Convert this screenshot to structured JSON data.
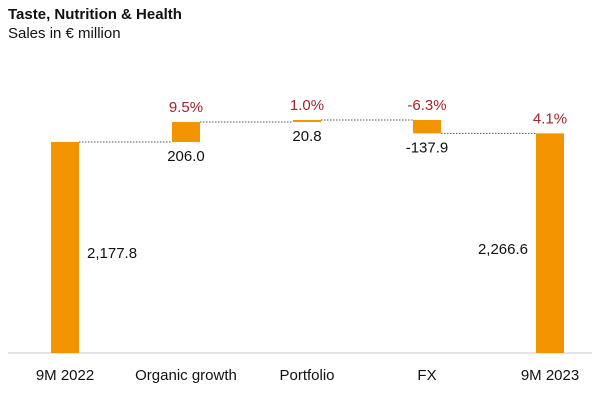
{
  "chart_data": {
    "type": "bar",
    "subtype": "waterfall",
    "title": "Taste, Nutrition & Health",
    "subtitle": "Sales in € million",
    "categories": [
      "9M 2022",
      "Organic growth",
      "Portfolio",
      "FX",
      "9M 2023"
    ],
    "values": [
      2177.8,
      206.0,
      20.8,
      -137.9,
      2266.6
    ],
    "value_labels": [
      "2,177.8",
      "206.0",
      "20.8",
      "-137.9",
      "2,266.6"
    ],
    "bar_kinds": [
      "total",
      "delta",
      "delta",
      "delta",
      "total"
    ],
    "percent_labels": [
      "",
      "9.5%",
      "1.0%",
      "-6.3%",
      "4.1%"
    ],
    "xlabel": "",
    "ylabel": "",
    "grid": false,
    "legend": "none",
    "colors": {
      "bar": "#F29400",
      "percent_label": "#A3242A",
      "text": "#111111",
      "connector": "#555555"
    }
  }
}
